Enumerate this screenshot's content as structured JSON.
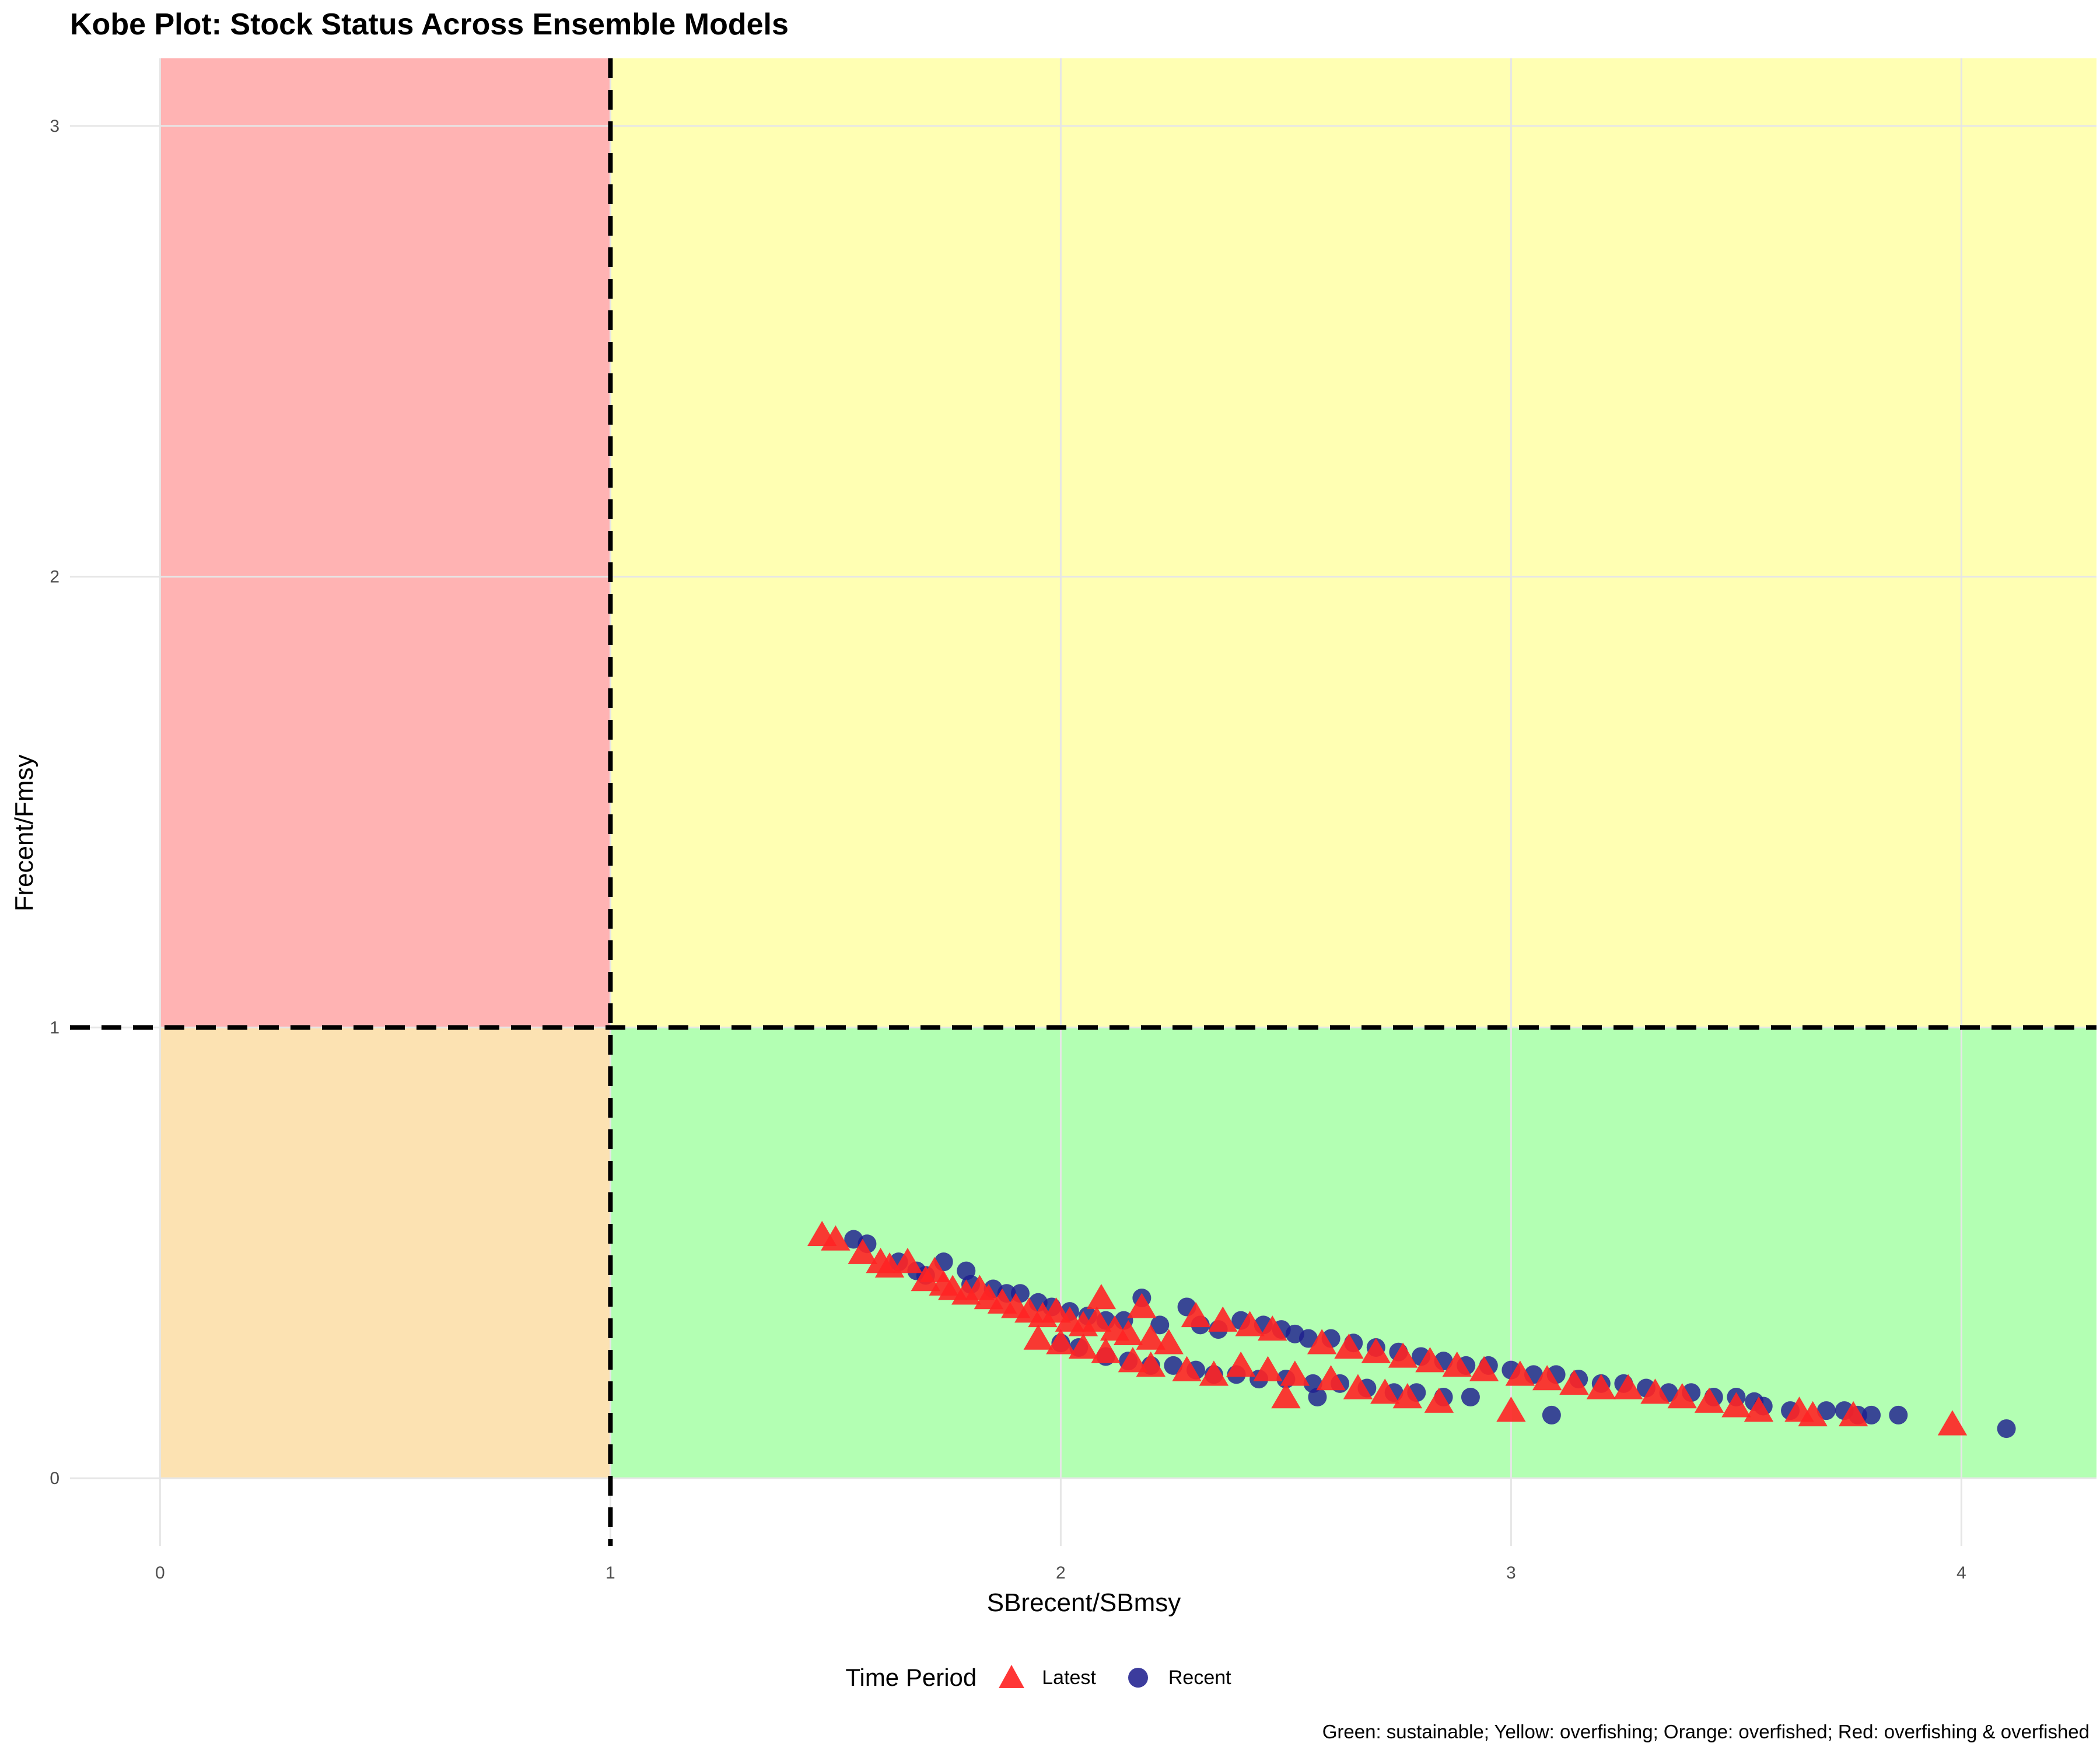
{
  "chart_data": {
    "type": "scatter",
    "title": "Kobe Plot: Stock Status Across Ensemble Models",
    "xlabel": "SBrecent/SBmsy",
    "ylabel": "Frecent/Fmsy",
    "xlim": [
      -0.2,
      4.3
    ],
    "ylim": [
      -0.15,
      3.15
    ],
    "x_ticks": [
      "0",
      "1",
      "2",
      "3",
      "4"
    ],
    "y_ticks": [
      "0",
      "1",
      "2",
      "3"
    ],
    "grid": true,
    "reference_lines": {
      "x": 1,
      "y": 1
    },
    "zones": [
      {
        "name": "sustainable",
        "color": "#b3ffb3",
        "x": [
          1,
          4.3
        ],
        "y": [
          0,
          1
        ]
      },
      {
        "name": "overfishing",
        "color": "#ffffb3",
        "x": [
          1,
          4.3
        ],
        "y": [
          1,
          3.15
        ]
      },
      {
        "name": "overfished",
        "color": "#fce2b2",
        "x": [
          0,
          1
        ],
        "y": [
          0,
          1
        ]
      },
      {
        "name": "overfishing & overfished",
        "color": "#ffb3b3",
        "x": [
          0,
          1
        ],
        "y": [
          1,
          3.15
        ]
      }
    ],
    "legend": {
      "title": "Time Period",
      "position": "bottom",
      "entries": [
        {
          "name": "Latest",
          "shape": "triangle",
          "color": "#ff1a1a"
        },
        {
          "name": "Recent",
          "shape": "circle",
          "color": "#1a1a8c"
        }
      ]
    },
    "series": [
      {
        "name": "Recent",
        "shape": "circle",
        "color": "#1f1f8f",
        "points": [
          [
            1.54,
            0.53
          ],
          [
            1.57,
            0.52
          ],
          [
            1.64,
            0.48
          ],
          [
            1.68,
            0.46
          ],
          [
            1.7,
            0.45
          ],
          [
            1.74,
            0.48
          ],
          [
            1.79,
            0.46
          ],
          [
            1.8,
            0.43
          ],
          [
            1.85,
            0.42
          ],
          [
            1.88,
            0.41
          ],
          [
            1.91,
            0.41
          ],
          [
            1.95,
            0.39
          ],
          [
            1.98,
            0.38
          ],
          [
            2.02,
            0.37
          ],
          [
            2.06,
            0.36
          ],
          [
            2.1,
            0.35
          ],
          [
            2.14,
            0.35
          ],
          [
            2.18,
            0.4
          ],
          [
            2.22,
            0.34
          ],
          [
            2.28,
            0.38
          ],
          [
            2.31,
            0.34
          ],
          [
            2.35,
            0.33
          ],
          [
            2.4,
            0.35
          ],
          [
            2.45,
            0.34
          ],
          [
            2.49,
            0.33
          ],
          [
            2.52,
            0.32
          ],
          [
            2.55,
            0.31
          ],
          [
            2.6,
            0.31
          ],
          [
            2.65,
            0.3
          ],
          [
            2.7,
            0.29
          ],
          [
            2.75,
            0.28
          ],
          [
            2.8,
            0.27
          ],
          [
            2.85,
            0.26
          ],
          [
            2.9,
            0.25
          ],
          [
            2.95,
            0.25
          ],
          [
            3.0,
            0.24
          ],
          [
            3.05,
            0.23
          ],
          [
            3.1,
            0.23
          ],
          [
            3.15,
            0.22
          ],
          [
            3.2,
            0.21
          ],
          [
            3.25,
            0.21
          ],
          [
            3.3,
            0.2
          ],
          [
            3.35,
            0.19
          ],
          [
            3.4,
            0.19
          ],
          [
            3.45,
            0.18
          ],
          [
            3.5,
            0.18
          ],
          [
            3.54,
            0.17
          ],
          [
            3.56,
            0.16
          ],
          [
            3.62,
            0.15
          ],
          [
            3.7,
            0.15
          ],
          [
            3.74,
            0.15
          ],
          [
            3.77,
            0.14
          ],
          [
            3.8,
            0.14
          ],
          [
            3.86,
            0.14
          ],
          [
            4.1,
            0.11
          ],
          [
            2.0,
            0.3
          ],
          [
            2.04,
            0.29
          ],
          [
            2.1,
            0.27
          ],
          [
            2.15,
            0.26
          ],
          [
            2.2,
            0.25
          ],
          [
            2.25,
            0.25
          ],
          [
            2.3,
            0.24
          ],
          [
            2.34,
            0.23
          ],
          [
            2.39,
            0.23
          ],
          [
            2.44,
            0.22
          ],
          [
            2.5,
            0.22
          ],
          [
            2.56,
            0.21
          ],
          [
            2.57,
            0.18
          ],
          [
            2.62,
            0.21
          ],
          [
            2.68,
            0.2
          ],
          [
            2.74,
            0.19
          ],
          [
            2.79,
            0.19
          ],
          [
            2.85,
            0.18
          ],
          [
            2.91,
            0.18
          ],
          [
            3.09,
            0.14
          ]
        ]
      },
      {
        "name": "Latest",
        "shape": "triangle",
        "color": "#ff2424",
        "points": [
          [
            1.47,
            0.54
          ],
          [
            1.5,
            0.53
          ],
          [
            1.56,
            0.5
          ],
          [
            1.6,
            0.48
          ],
          [
            1.62,
            0.47
          ],
          [
            1.66,
            0.48
          ],
          [
            1.7,
            0.44
          ],
          [
            1.72,
            0.46
          ],
          [
            1.74,
            0.43
          ],
          [
            1.76,
            0.42
          ],
          [
            1.79,
            0.41
          ],
          [
            1.82,
            0.42
          ],
          [
            1.84,
            0.4
          ],
          [
            1.87,
            0.39
          ],
          [
            1.9,
            0.38
          ],
          [
            1.93,
            0.37
          ],
          [
            1.96,
            0.36
          ],
          [
            1.99,
            0.37
          ],
          [
            2.02,
            0.35
          ],
          [
            2.05,
            0.34
          ],
          [
            2.08,
            0.35
          ],
          [
            2.09,
            0.4
          ],
          [
            2.12,
            0.33
          ],
          [
            2.15,
            0.32
          ],
          [
            2.18,
            0.38
          ],
          [
            2.2,
            0.31
          ],
          [
            2.24,
            0.3
          ],
          [
            2.3,
            0.36
          ],
          [
            2.36,
            0.35
          ],
          [
            2.42,
            0.34
          ],
          [
            2.47,
            0.33
          ],
          [
            2.5,
            0.18
          ],
          [
            2.58,
            0.3
          ],
          [
            2.64,
            0.29
          ],
          [
            2.7,
            0.28
          ],
          [
            2.76,
            0.27
          ],
          [
            2.82,
            0.26
          ],
          [
            2.88,
            0.25
          ],
          [
            2.94,
            0.24
          ],
          [
            3.0,
            0.15
          ],
          [
            3.02,
            0.23
          ],
          [
            3.08,
            0.22
          ],
          [
            3.14,
            0.21
          ],
          [
            3.2,
            0.2
          ],
          [
            3.26,
            0.2
          ],
          [
            3.32,
            0.19
          ],
          [
            3.38,
            0.18
          ],
          [
            3.44,
            0.17
          ],
          [
            3.5,
            0.16
          ],
          [
            3.55,
            0.15
          ],
          [
            3.64,
            0.15
          ],
          [
            3.67,
            0.14
          ],
          [
            3.76,
            0.14
          ],
          [
            3.98,
            0.12
          ],
          [
            1.95,
            0.31
          ],
          [
            2.0,
            0.3
          ],
          [
            2.05,
            0.29
          ],
          [
            2.1,
            0.28
          ],
          [
            2.16,
            0.26
          ],
          [
            2.2,
            0.25
          ],
          [
            2.28,
            0.24
          ],
          [
            2.34,
            0.23
          ],
          [
            2.4,
            0.25
          ],
          [
            2.46,
            0.24
          ],
          [
            2.52,
            0.23
          ],
          [
            2.6,
            0.22
          ],
          [
            2.66,
            0.2
          ],
          [
            2.72,
            0.19
          ],
          [
            2.77,
            0.18
          ],
          [
            2.84,
            0.17
          ]
        ]
      }
    ],
    "caption": "Green: sustainable; Yellow: overfishing; Orange: overfished; Red: overfishing & overfished"
  }
}
